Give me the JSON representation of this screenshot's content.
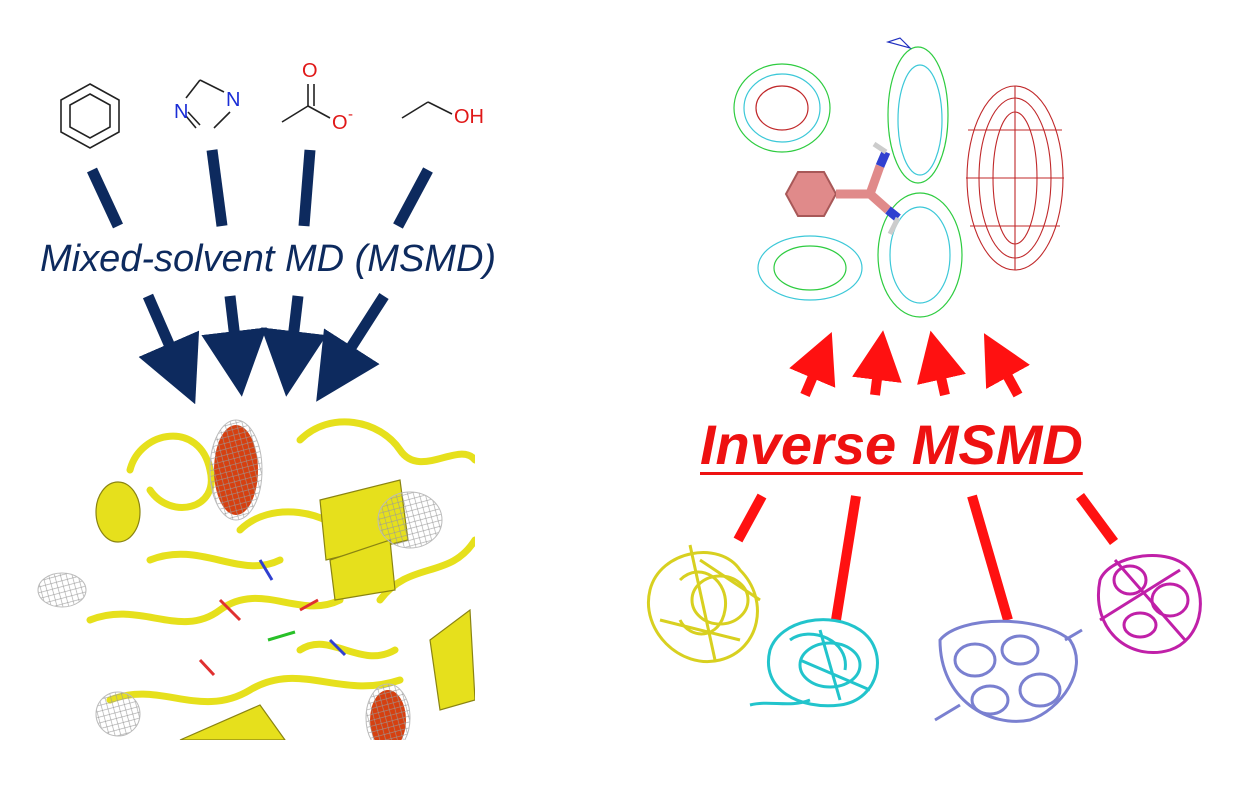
{
  "labels": {
    "left_method": "Mixed-solvent MD (MSMD)",
    "right_method": "Inverse MSMD"
  },
  "molecules": {
    "imidazole_n1": "N",
    "imidazole_n2": "N",
    "acetate_o_top": "O",
    "acetate_o_minus": "O",
    "acetate_charge": "-",
    "ethanol_oh": "OH"
  },
  "colors": {
    "navy_arrow": "#0d2a5e",
    "red_arrow": "#ff1111",
    "protein_yellow": "#e6e01c",
    "mesh_red": "#c0282a",
    "mesh_green": "#2ecc40",
    "mesh_cyan": "#3cc8d8",
    "protein_cyan": "#22c4cc",
    "protein_blue": "#7a80d0",
    "protein_magenta": "#c020a8"
  },
  "icons": [
    "benzene-icon",
    "imidazole-icon",
    "acetate-icon",
    "ethanol-icon",
    "protein-yellow-icon",
    "protein-cyan-icon",
    "protein-blue-icon",
    "protein-magenta-icon",
    "hotspot-map-icon",
    "probe-ligand-icon"
  ]
}
